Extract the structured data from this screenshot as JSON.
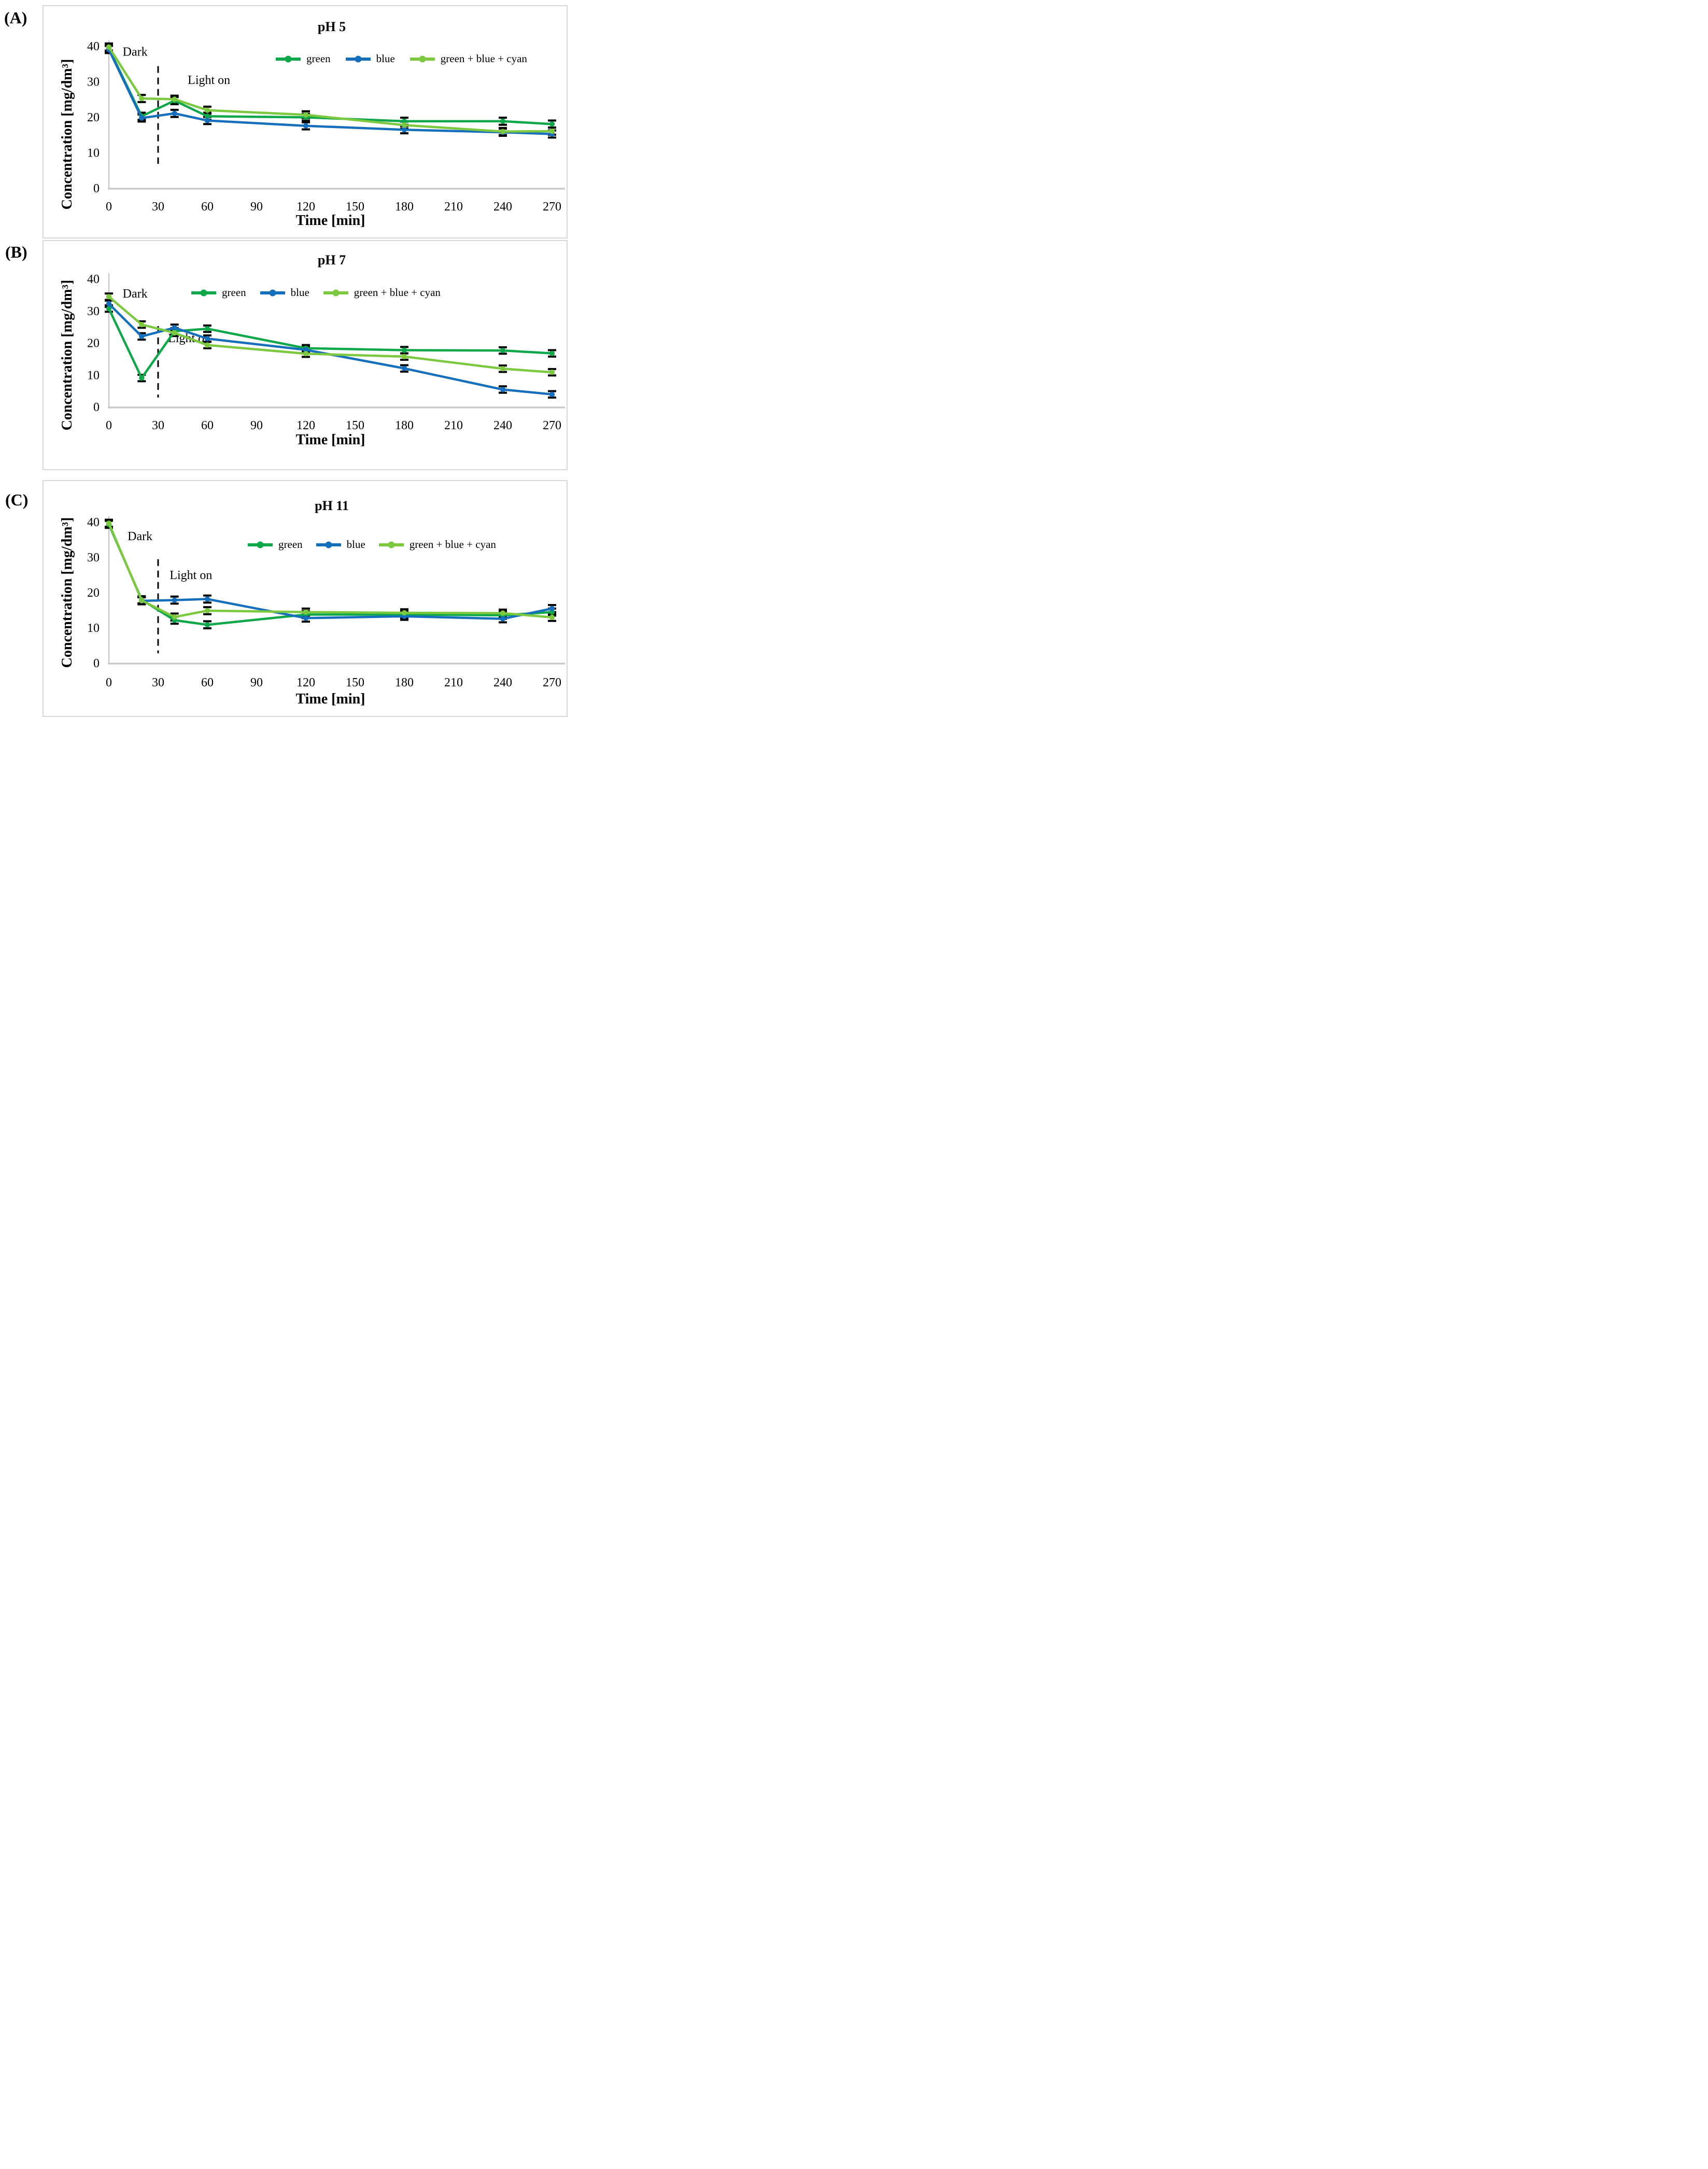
{
  "colors": {
    "green": "#0EA84B",
    "blue": "#166FBC",
    "green_blue_cyan": "#7CC83E",
    "axis": "#C9C9C9",
    "error_bar": "#000000",
    "dashed_line": "#000000",
    "panel_border": "#D9D9D9",
    "text": "#000000"
  },
  "chart_data": [
    {
      "type": "line",
      "panel_letter": "(A)",
      "title": "pH 5",
      "xlabel": "Time [min]",
      "ylabel": "Concentration [mg/dm³]",
      "xticks": [
        0,
        30,
        60,
        90,
        120,
        150,
        180,
        210,
        240,
        270
      ],
      "yticks": [
        0,
        10,
        20,
        30,
        40
      ],
      "xlim": [
        0,
        278
      ],
      "ylim": [
        0,
        40
      ],
      "grid": false,
      "legend_position": "top-right-inside",
      "error_bar": 1.0,
      "annotations": {
        "dark": {
          "text": "Dark",
          "t": 16,
          "conc": 38.5
        },
        "light_on": {
          "text": "Light on",
          "t": 61,
          "conc": 30.5
        },
        "dashed_divider": {
          "t": 30,
          "conc_top": 34.5,
          "conc_bottom": 7.0
        }
      },
      "x": [
        0,
        20,
        40,
        60,
        120,
        180,
        240,
        270
      ],
      "series": [
        {
          "name": "green",
          "color": "green",
          "y": [
            39.5,
            20.4,
            24.8,
            20.4,
            20.1,
            19.0,
            19.0,
            18.2
          ]
        },
        {
          "name": "blue",
          "color": "blue",
          "y": [
            39.2,
            19.9,
            21.2,
            19.2,
            17.7,
            16.6,
            15.9,
            15.4
          ]
        },
        {
          "name": "green + blue + cyan",
          "color": "green_blue_cyan",
          "y": [
            39.9,
            25.4,
            25.2,
            22.1,
            20.8,
            17.9,
            16.1,
            16.2
          ]
        }
      ]
    },
    {
      "type": "line",
      "panel_letter": "(B)",
      "title": "pH 7",
      "xlabel": "Time [min]",
      "ylabel": "Concentration [mg/dm³]",
      "xticks": [
        0,
        30,
        60,
        90,
        120,
        150,
        180,
        210,
        240,
        270
      ],
      "yticks": [
        0,
        10,
        20,
        30,
        40
      ],
      "xlim": [
        0,
        278
      ],
      "ylim": [
        0,
        40
      ],
      "grid": false,
      "legend_position": "top-center-inside",
      "error_bar": 1.0,
      "annotations": {
        "dark": {
          "text": "Dark",
          "t": 16,
          "conc": 35.5
        },
        "light_on": {
          "text": "Light on",
          "t": 49,
          "conc": 21.5
        },
        "dashed_divider": {
          "t": 30,
          "conc_top": 25.4,
          "conc_bottom": 3.1
        }
      },
      "x": [
        0,
        20,
        40,
        60,
        120,
        180,
        240,
        270
      ],
      "series": [
        {
          "name": "green",
          "color": "green",
          "y": [
            30.9,
            9.2,
            23.8,
            24.6,
            18.5,
            17.9,
            17.8,
            16.9
          ]
        },
        {
          "name": "blue",
          "color": "blue",
          "y": [
            32.4,
            22.2,
            24.9,
            21.5,
            18.0,
            12.2,
            5.6,
            4.1
          ]
        },
        {
          "name": "green + blue + cyan",
          "color": "green_blue_cyan",
          "y": [
            34.6,
            25.9,
            23.3,
            19.5,
            16.8,
            15.9,
            12.1,
            11.0
          ]
        }
      ]
    },
    {
      "type": "line",
      "panel_letter": "(C)",
      "title": "pH 11",
      "xlabel": "Time [min]",
      "ylabel": "Concentration [mg/dm³]",
      "xticks": [
        0,
        30,
        60,
        90,
        120,
        150,
        180,
        210,
        240,
        270
      ],
      "yticks": [
        0,
        10,
        20,
        30,
        40
      ],
      "xlim": [
        0,
        278
      ],
      "ylim": [
        0,
        40
      ],
      "grid": false,
      "legend_position": "top-center-inside",
      "error_bar": 1.0,
      "annotations": {
        "dark": {
          "text": "Dark",
          "t": 19,
          "conc": 36.0
        },
        "light_on": {
          "text": "Light on",
          "t": 50,
          "conc": 25.0
        },
        "dashed_divider": {
          "t": 30,
          "conc_top": 29.6,
          "conc_bottom": 2.9
        }
      },
      "x": [
        0,
        20,
        40,
        60,
        120,
        180,
        240,
        270
      ],
      "series": [
        {
          "name": "green",
          "color": "green",
          "y": [
            39.5,
            18.1,
            12.3,
            11.0,
            13.9,
            13.9,
            13.7,
            14.6
          ]
        },
        {
          "name": "blue",
          "color": "blue",
          "x": [
            20,
            40,
            60,
            120,
            180,
            240,
            270
          ],
          "y": [
            17.8,
            18.0,
            18.3,
            12.9,
            13.4,
            12.7,
            15.6
          ]
        },
        {
          "name": "green + blue + cyan",
          "color": "green_blue_cyan",
          "y": [
            39.8,
            17.9,
            13.2,
            15.0,
            14.6,
            14.4,
            14.3,
            13.1
          ]
        }
      ]
    }
  ]
}
